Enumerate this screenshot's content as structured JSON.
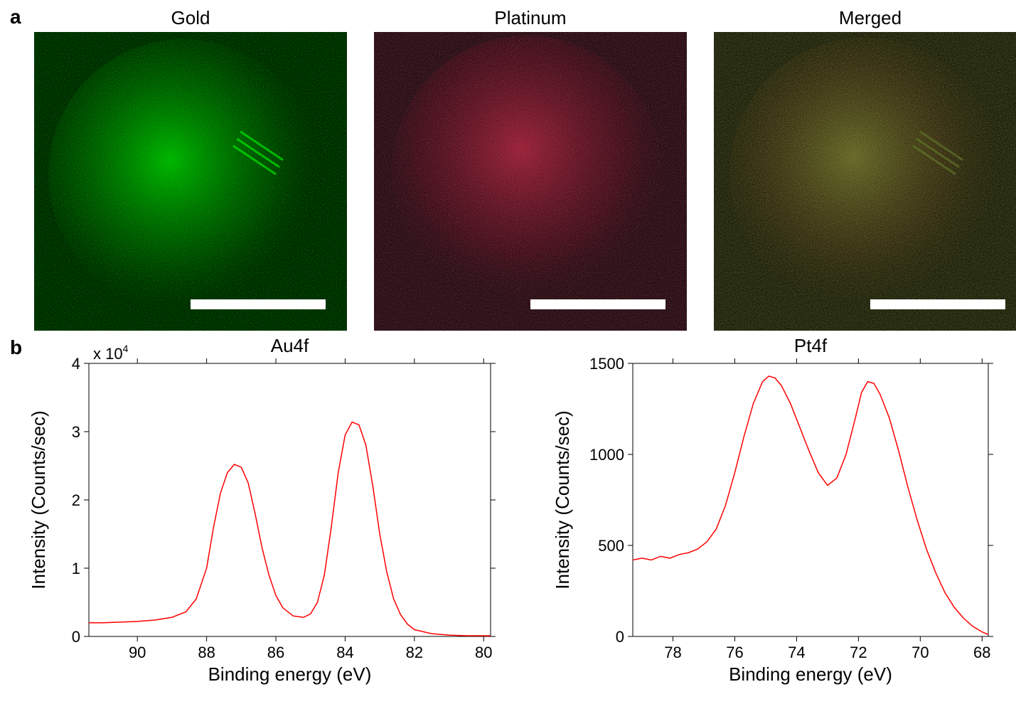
{
  "panel_a": {
    "label": "a",
    "images": [
      {
        "title": "Gold",
        "tint": "#00ff00"
      },
      {
        "title": "Platinum",
        "tint": "#d02040"
      },
      {
        "title": "Merged",
        "tint": "merged"
      }
    ],
    "scalebar_color": "#ffffff"
  },
  "panel_b": {
    "label": "b",
    "charts": [
      {
        "title": "Au4f",
        "exponent_label": "x 10",
        "exponent_sup": "4",
        "x_label": "Binding energy (eV)",
        "y_label": "Intensity (Counts/sec)",
        "x_ticks": [
          90,
          88,
          86,
          84,
          82,
          80
        ],
        "x_range": [
          91.4,
          79.8
        ],
        "y_ticks": [
          0,
          1,
          2,
          3,
          4
        ],
        "y_range": [
          0,
          4
        ],
        "line_color": "#ff0000",
        "data": [
          [
            91.4,
            0.2
          ],
          [
            91.0,
            0.2
          ],
          [
            90.5,
            0.21
          ],
          [
            90.0,
            0.22
          ],
          [
            89.5,
            0.24
          ],
          [
            89.0,
            0.28
          ],
          [
            88.6,
            0.36
          ],
          [
            88.3,
            0.55
          ],
          [
            88.0,
            1.0
          ],
          [
            87.8,
            1.6
          ],
          [
            87.6,
            2.1
          ],
          [
            87.4,
            2.4
          ],
          [
            87.2,
            2.52
          ],
          [
            87.0,
            2.48
          ],
          [
            86.8,
            2.25
          ],
          [
            86.6,
            1.8
          ],
          [
            86.4,
            1.3
          ],
          [
            86.2,
            0.9
          ],
          [
            86.0,
            0.6
          ],
          [
            85.8,
            0.42
          ],
          [
            85.5,
            0.3
          ],
          [
            85.2,
            0.28
          ],
          [
            85.0,
            0.33
          ],
          [
            84.8,
            0.5
          ],
          [
            84.6,
            0.9
          ],
          [
            84.4,
            1.6
          ],
          [
            84.2,
            2.4
          ],
          [
            84.0,
            2.95
          ],
          [
            83.8,
            3.14
          ],
          [
            83.6,
            3.1
          ],
          [
            83.4,
            2.8
          ],
          [
            83.2,
            2.2
          ],
          [
            83.0,
            1.5
          ],
          [
            82.8,
            0.95
          ],
          [
            82.6,
            0.55
          ],
          [
            82.4,
            0.32
          ],
          [
            82.2,
            0.18
          ],
          [
            82.0,
            0.1
          ],
          [
            81.5,
            0.04
          ],
          [
            81.0,
            0.02
          ],
          [
            80.5,
            0.01
          ],
          [
            80.0,
            0.01
          ],
          [
            79.8,
            0.01
          ]
        ]
      },
      {
        "title": "Pt4f",
        "x_label": "Binding energy (eV)",
        "y_label": "Intensity (Counts/sec)",
        "x_ticks": [
          78,
          76,
          74,
          72,
          70,
          68
        ],
        "x_range": [
          79.3,
          67.8
        ],
        "y_ticks": [
          0,
          500,
          1000,
          1500
        ],
        "y_range": [
          0,
          1500
        ],
        "line_color": "#ff0000",
        "data": [
          [
            79.3,
            420
          ],
          [
            79.0,
            430
          ],
          [
            78.7,
            420
          ],
          [
            78.4,
            440
          ],
          [
            78.1,
            430
          ],
          [
            77.8,
            450
          ],
          [
            77.5,
            460
          ],
          [
            77.2,
            480
          ],
          [
            76.9,
            520
          ],
          [
            76.6,
            590
          ],
          [
            76.3,
            720
          ],
          [
            76.0,
            900
          ],
          [
            75.7,
            1100
          ],
          [
            75.4,
            1280
          ],
          [
            75.1,
            1400
          ],
          [
            74.9,
            1430
          ],
          [
            74.7,
            1420
          ],
          [
            74.5,
            1380
          ],
          [
            74.2,
            1280
          ],
          [
            73.9,
            1150
          ],
          [
            73.6,
            1020
          ],
          [
            73.3,
            900
          ],
          [
            73.0,
            830
          ],
          [
            72.7,
            870
          ],
          [
            72.4,
            1000
          ],
          [
            72.1,
            1200
          ],
          [
            71.9,
            1340
          ],
          [
            71.7,
            1400
          ],
          [
            71.5,
            1390
          ],
          [
            71.3,
            1330
          ],
          [
            71.0,
            1200
          ],
          [
            70.7,
            1020
          ],
          [
            70.4,
            820
          ],
          [
            70.1,
            640
          ],
          [
            69.8,
            480
          ],
          [
            69.5,
            350
          ],
          [
            69.2,
            240
          ],
          [
            68.9,
            160
          ],
          [
            68.6,
            100
          ],
          [
            68.3,
            55
          ],
          [
            68.0,
            25
          ],
          [
            67.8,
            10
          ]
        ]
      }
    ]
  },
  "style": {
    "background": "#ffffff",
    "line_color": "#ff0000",
    "axis_color": "#000000",
    "tick_fontsize": 22,
    "label_fontsize": 26,
    "title_fontsize": 26
  }
}
